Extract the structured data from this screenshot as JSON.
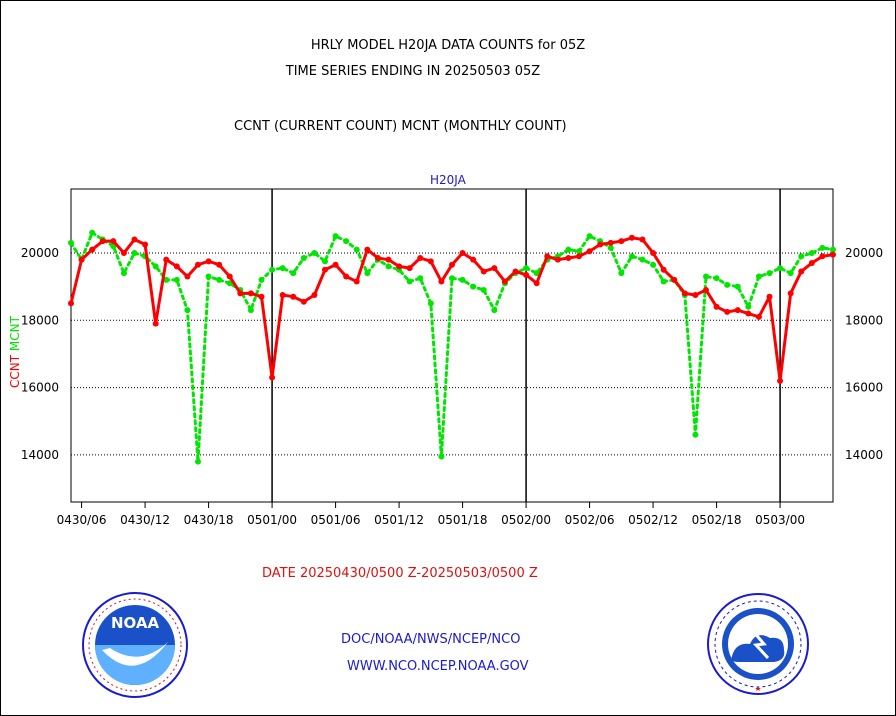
{
  "titles": {
    "line1": "HRLY MODEL H20JA DATA COUNTS for 05Z",
    "line2": "TIME SERIES ENDING IN 20250503 05Z",
    "subtitle": "CCNT (CURRENT COUNT) MCNT (MONTHLY COUNT)",
    "station": "H20JA",
    "date_range": "DATE 20250430/0500 Z-20250503/0500 Z"
  },
  "footer": {
    "link1": "DOC/NOAA/NWS/NCEP/NCO",
    "link2": "WWW.NCO.NCEP.NOAA.GOV",
    "left_logo": "noaa-logo",
    "right_logo": "national-weather-service-logo"
  },
  "colors": {
    "ccnt": "#ff0000",
    "mcnt": "#00e600",
    "text_blue": "#1a1ad0"
  },
  "chart_data": {
    "type": "line",
    "title": "H20JA",
    "ylabel_parts": [
      "CCNT",
      "MCNT"
    ],
    "ylim": [
      12600,
      21900
    ],
    "yticks": [
      14000,
      16000,
      18000,
      20000
    ],
    "x_hours_range": [
      5,
      77
    ],
    "xtick_labels": [
      "0430/06",
      "0430/12",
      "0430/18",
      "0501/00",
      "0501/06",
      "0501/12",
      "0501/18",
      "0502/00",
      "0502/06",
      "0502/12",
      "0502/18",
      "0503/00"
    ],
    "xtick_hours": [
      6,
      12,
      18,
      24,
      30,
      36,
      42,
      48,
      54,
      60,
      66,
      72
    ],
    "day_lines_hours": [
      24,
      48,
      72
    ],
    "grid": "dotted horizontal",
    "series": [
      {
        "name": "CCNT",
        "color": "#ff0000",
        "style": "solid",
        "hours": [
          5,
          6,
          7,
          8,
          9,
          10,
          11,
          12,
          13,
          14,
          15,
          16,
          17,
          18,
          19,
          20,
          21,
          22,
          23,
          24,
          25,
          26,
          27,
          28,
          29,
          30,
          31,
          32,
          33,
          34,
          35,
          36,
          37,
          38,
          39,
          40,
          41,
          42,
          43,
          44,
          45,
          46,
          47,
          48,
          49,
          50,
          51,
          52,
          53,
          54,
          55,
          56,
          57,
          58,
          59,
          60,
          61,
          62,
          63,
          64,
          65,
          66,
          67,
          68,
          69,
          70,
          71,
          72,
          73,
          74,
          75,
          76,
          77
        ],
        "values": [
          18500,
          19800,
          20100,
          20350,
          20350,
          20000,
          20400,
          20250,
          17900,
          19800,
          19600,
          19300,
          19650,
          19750,
          19650,
          19300,
          18800,
          18800,
          18700,
          16300,
          18750,
          18700,
          18550,
          18750,
          19500,
          19650,
          19300,
          19150,
          20100,
          19850,
          19800,
          19600,
          19550,
          19850,
          19750,
          19150,
          19650,
          20000,
          19800,
          19450,
          19550,
          19150,
          19450,
          19350,
          19100,
          19900,
          19800,
          19850,
          19900,
          20050,
          20250,
          20300,
          20350,
          20450,
          20400,
          20000,
          19500,
          19200,
          18800,
          18750,
          18900,
          18400,
          18250,
          18300,
          18200,
          18100,
          18700,
          16200,
          18800,
          19450,
          19700,
          19900,
          19950
        ]
      },
      {
        "name": "MCNT",
        "color": "#00e600",
        "style": "dotted",
        "hours": [
          5,
          6,
          7,
          8,
          9,
          10,
          11,
          12,
          13,
          14,
          15,
          16,
          17,
          18,
          19,
          20,
          21,
          22,
          23,
          24,
          25,
          26,
          27,
          28,
          29,
          30,
          31,
          32,
          33,
          34,
          35,
          36,
          37,
          38,
          39,
          40,
          41,
          42,
          43,
          44,
          45,
          46,
          47,
          48,
          49,
          50,
          51,
          52,
          53,
          54,
          55,
          56,
          57,
          58,
          59,
          60,
          61,
          62,
          63,
          64,
          65,
          66,
          67,
          68,
          69,
          70,
          71,
          72,
          73,
          74,
          75,
          76,
          77
        ],
        "values": [
          20300,
          19800,
          20600,
          20400,
          20200,
          19400,
          20000,
          19900,
          19600,
          19200,
          19200,
          18300,
          13800,
          19300,
          19200,
          19100,
          18900,
          18300,
          19200,
          19500,
          19550,
          19400,
          19850,
          20000,
          19750,
          20500,
          20350,
          20100,
          19400,
          19800,
          19600,
          19500,
          19150,
          19250,
          18500,
          13950,
          19250,
          19200,
          19000,
          18900,
          18300,
          19100,
          19400,
          19550,
          19400,
          19800,
          19900,
          20100,
          20050,
          20500,
          20350,
          20150,
          19400,
          19900,
          19800,
          19650,
          19150,
          19200,
          18750,
          14600,
          19300,
          19250,
          19050,
          19000,
          18400,
          19300,
          19400,
          19550,
          19400,
          19900,
          20000,
          20150,
          20100
        ]
      }
    ]
  }
}
